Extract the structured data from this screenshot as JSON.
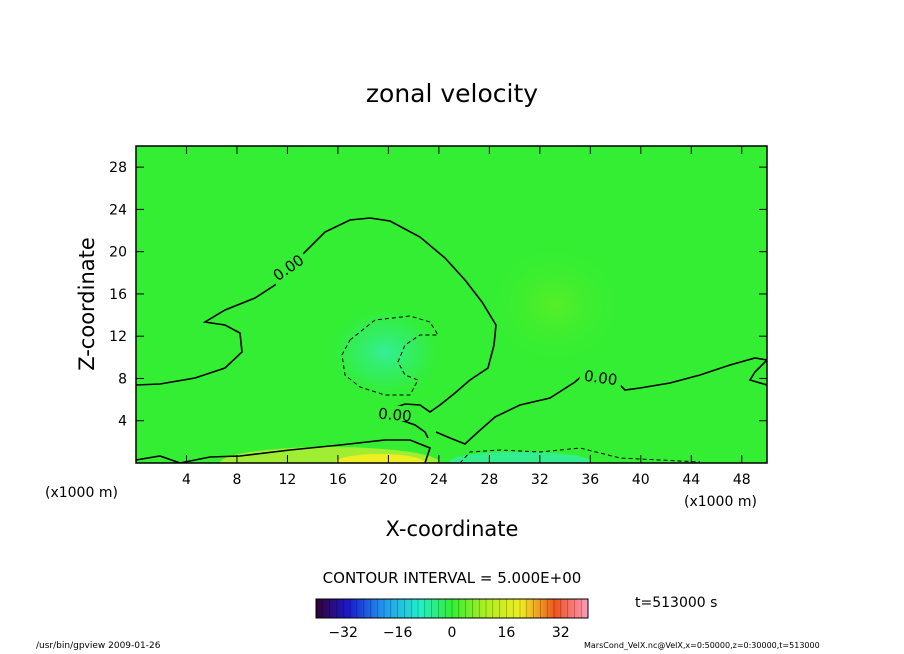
{
  "chart_data": {
    "type": "heatmap",
    "title": "zonal velocity",
    "xlabel": "X-coordinate",
    "ylabel": "Z-coordinate",
    "x_unit_left": "(x1000 m)",
    "x_unit_right": "(x1000 m)",
    "xlim": [
      0,
      50
    ],
    "ylim": [
      0,
      30
    ],
    "x_ticks": [
      "4",
      "8",
      "12",
      "16",
      "20",
      "24",
      "28",
      "32",
      "36",
      "40",
      "44",
      "48"
    ],
    "y_ticks": [
      "4",
      "8",
      "12",
      "16",
      "20",
      "24",
      "28"
    ],
    "contour_labels": [
      "0.00",
      "0.00",
      "0.00"
    ],
    "contour_interval_label": "CONTOUR INTERVAL = 5.000E+00",
    "time_label": "t=513000 s",
    "colorbar": {
      "min": -40,
      "max": 40,
      "ticks": [
        "−32",
        "−16",
        "0",
        "16",
        "32"
      ]
    },
    "background_color": "#33ee33"
  },
  "footer": {
    "left": "/usr/bin/gpview   2009-01-26",
    "right": "MarsCond_VelX.nc@VelX,x=0:50000,z=0:30000,t=513000"
  }
}
